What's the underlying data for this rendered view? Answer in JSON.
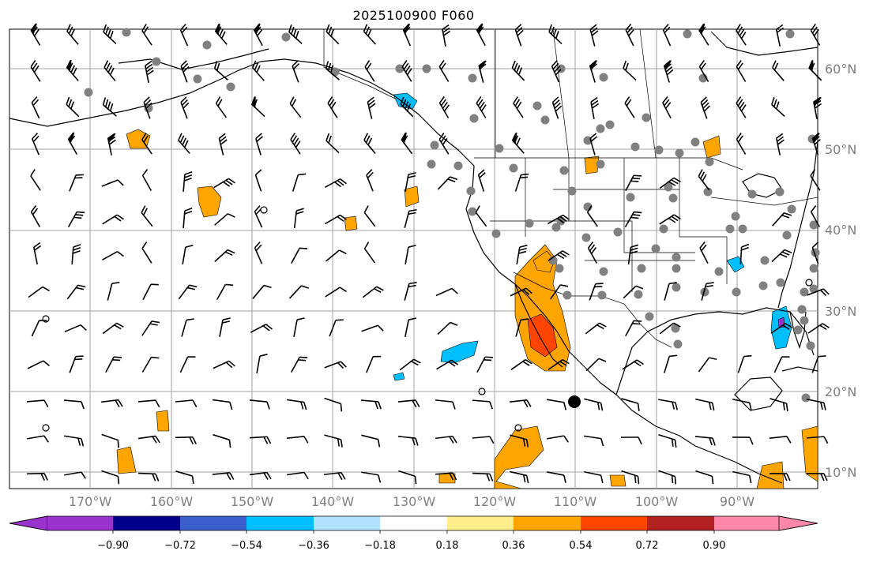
{
  "title": "2025100900 F060",
  "map": {
    "lat_labels": [
      "60°N",
      "50°N",
      "40°N",
      "30°N",
      "20°N",
      "10°N"
    ],
    "lon_labels": [
      "170°W",
      "160°W",
      "150°W",
      "140°W",
      "130°W",
      "120°W",
      "110°W",
      "100°W",
      "90°W"
    ],
    "gridline_color": "#a0a0a0"
  },
  "colorbar": {
    "tick_labels": [
      "−0.90",
      "−0.72",
      "−0.54",
      "−0.36",
      "−0.18",
      "0.18",
      "0.36",
      "0.54",
      "0.72",
      "0.90"
    ],
    "colors": [
      "#9a32cd",
      "#00008b",
      "#3a5fcd",
      "#00bfff",
      "#b0e2ff",
      "#ffffff",
      "#ffec8b",
      "#ffa500",
      "#ff4500",
      "#b22222",
      "#ff88aa"
    ]
  }
}
